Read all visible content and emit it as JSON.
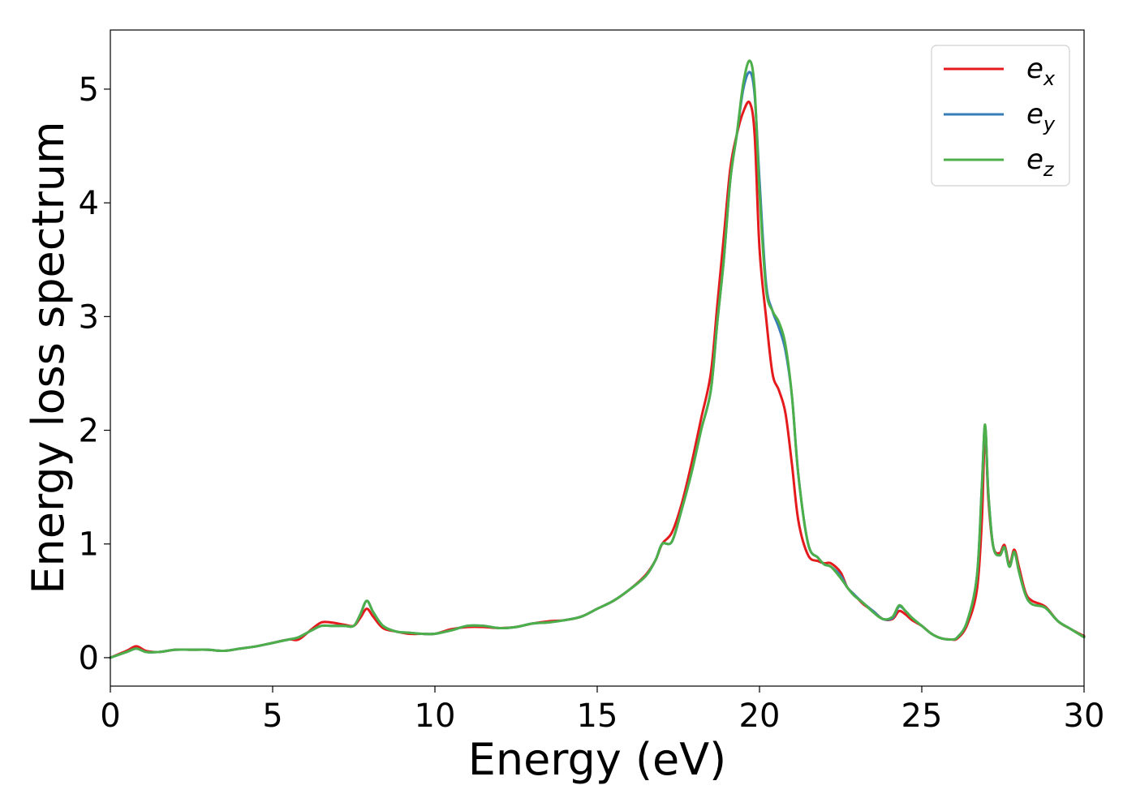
{
  "chart_data": {
    "type": "line",
    "xlabel": "Energy (eV)",
    "ylabel": "Energy loss spectrum",
    "xlim": [
      0,
      30
    ],
    "ylim": [
      -0.25,
      5.52
    ],
    "xticks": [
      0,
      5,
      10,
      15,
      20,
      25,
      30
    ],
    "xtick_labels": [
      "0",
      "5",
      "10",
      "15",
      "20",
      "25",
      "30"
    ],
    "yticks": [
      0,
      1,
      2,
      3,
      4,
      5
    ],
    "ytick_labels": [
      "0",
      "1",
      "2",
      "3",
      "4",
      "5"
    ],
    "grid": false,
    "legend_position": "top-right",
    "series": [
      {
        "name": "e_x",
        "label_main": "e",
        "label_sub": "x",
        "color": "#e41a1c",
        "x": [
          0,
          0.5,
          0.8,
          1.1,
          1.5,
          2,
          2.5,
          3,
          3.5,
          4,
          4.5,
          5,
          5.5,
          5.8,
          6.2,
          6.5,
          6.8,
          7.2,
          7.5,
          7.7,
          7.9,
          8.1,
          8.4,
          8.8,
          9.2,
          9.6,
          10,
          10.5,
          11,
          11.5,
          12,
          12.5,
          13,
          13.5,
          14,
          14.5,
          15,
          15.5,
          16,
          16.5,
          16.8,
          17,
          17.3,
          17.6,
          17.9,
          18.2,
          18.5,
          18.7,
          18.9,
          19.1,
          19.3,
          19.5,
          19.7,
          19.85,
          20,
          20.2,
          20.4,
          20.6,
          20.8,
          21,
          21.2,
          21.5,
          21.8,
          22,
          22.2,
          22.5,
          22.7,
          22.9,
          23.2,
          23.5,
          23.8,
          24.1,
          24.3,
          24.5,
          24.7,
          25,
          25.3,
          25.6,
          25.9,
          26.1,
          26.4,
          26.7,
          26.85,
          26.95,
          27.05,
          27.2,
          27.4,
          27.55,
          27.7,
          27.85,
          28,
          28.2,
          28.4,
          28.8,
          29.2,
          29.6,
          30
        ],
        "y": [
          0,
          0.06,
          0.1,
          0.06,
          0.05,
          0.07,
          0.07,
          0.07,
          0.06,
          0.08,
          0.1,
          0.13,
          0.16,
          0.16,
          0.25,
          0.31,
          0.31,
          0.29,
          0.28,
          0.35,
          0.43,
          0.36,
          0.26,
          0.23,
          0.21,
          0.21,
          0.21,
          0.25,
          0.27,
          0.27,
          0.26,
          0.27,
          0.3,
          0.32,
          0.33,
          0.36,
          0.43,
          0.5,
          0.6,
          0.73,
          0.86,
          1.0,
          1.1,
          1.35,
          1.7,
          2.1,
          2.5,
          3.1,
          3.7,
          4.3,
          4.6,
          4.8,
          4.88,
          4.6,
          3.6,
          3.0,
          2.5,
          2.35,
          2.15,
          1.7,
          1.2,
          0.9,
          0.85,
          0.83,
          0.83,
          0.75,
          0.62,
          0.56,
          0.47,
          0.41,
          0.34,
          0.34,
          0.41,
          0.38,
          0.33,
          0.28,
          0.21,
          0.17,
          0.16,
          0.17,
          0.29,
          0.6,
          1.2,
          2.0,
          1.4,
          0.98,
          0.92,
          0.99,
          0.82,
          0.95,
          0.79,
          0.57,
          0.5,
          0.45,
          0.32,
          0.25,
          0.19
        ]
      },
      {
        "name": "e_y",
        "label_main": "e",
        "label_sub": "y",
        "color": "#377eb8",
        "x": [
          0,
          0.5,
          0.8,
          1.1,
          1.5,
          2,
          2.5,
          3,
          3.5,
          4,
          4.5,
          5,
          5.5,
          5.8,
          6.2,
          6.5,
          6.8,
          7.2,
          7.5,
          7.7,
          7.9,
          8.1,
          8.4,
          8.8,
          9.2,
          9.6,
          10,
          10.5,
          11,
          11.5,
          12,
          12.5,
          13,
          13.5,
          14,
          14.5,
          15,
          15.5,
          16,
          16.5,
          16.8,
          17,
          17.3,
          17.6,
          17.9,
          18.2,
          18.5,
          18.7,
          18.9,
          19.1,
          19.3,
          19.5,
          19.7,
          19.85,
          20,
          20.2,
          20.4,
          20.6,
          20.8,
          21,
          21.2,
          21.5,
          21.8,
          22,
          22.2,
          22.5,
          22.7,
          22.9,
          23.2,
          23.5,
          23.8,
          24.1,
          24.3,
          24.5,
          24.7,
          25,
          25.3,
          25.6,
          25.9,
          26.1,
          26.4,
          26.7,
          26.85,
          26.95,
          27.05,
          27.2,
          27.4,
          27.55,
          27.7,
          27.85,
          28,
          28.2,
          28.4,
          28.8,
          29.2,
          29.6,
          30
        ],
        "y": [
          0,
          0.05,
          0.08,
          0.05,
          0.05,
          0.07,
          0.07,
          0.07,
          0.06,
          0.08,
          0.1,
          0.13,
          0.16,
          0.18,
          0.24,
          0.28,
          0.28,
          0.28,
          0.28,
          0.38,
          0.5,
          0.4,
          0.28,
          0.23,
          0.22,
          0.21,
          0.21,
          0.24,
          0.28,
          0.28,
          0.26,
          0.27,
          0.3,
          0.31,
          0.33,
          0.36,
          0.43,
          0.5,
          0.6,
          0.72,
          0.86,
          1.0,
          1.02,
          1.3,
          1.62,
          2.0,
          2.35,
          2.95,
          3.5,
          4.2,
          4.6,
          5.0,
          5.15,
          4.95,
          4.2,
          3.3,
          3.05,
          2.9,
          2.7,
          2.3,
          1.6,
          1.0,
          0.88,
          0.82,
          0.8,
          0.72,
          0.62,
          0.56,
          0.48,
          0.41,
          0.34,
          0.35,
          0.45,
          0.41,
          0.35,
          0.28,
          0.21,
          0.17,
          0.16,
          0.18,
          0.32,
          0.72,
          1.5,
          2.04,
          1.45,
          0.98,
          0.9,
          0.97,
          0.8,
          0.93,
          0.75,
          0.55,
          0.47,
          0.44,
          0.32,
          0.25,
          0.18
        ]
      },
      {
        "name": "e_z",
        "label_main": "e",
        "label_sub": "z",
        "color": "#4daf4a",
        "x": [
          0,
          0.5,
          0.8,
          1.1,
          1.5,
          2,
          2.5,
          3,
          3.5,
          4,
          4.5,
          5,
          5.5,
          5.8,
          6.2,
          6.5,
          6.8,
          7.2,
          7.5,
          7.7,
          7.9,
          8.1,
          8.4,
          8.8,
          9.2,
          9.6,
          10,
          10.5,
          11,
          11.5,
          12,
          12.5,
          13,
          13.5,
          14,
          14.5,
          15,
          15.5,
          16,
          16.5,
          16.8,
          17,
          17.3,
          17.6,
          17.9,
          18.2,
          18.5,
          18.7,
          18.9,
          19.1,
          19.3,
          19.5,
          19.7,
          19.85,
          20,
          20.2,
          20.4,
          20.6,
          20.8,
          21,
          21.2,
          21.5,
          21.8,
          22,
          22.2,
          22.5,
          22.7,
          22.9,
          23.2,
          23.5,
          23.8,
          24.1,
          24.3,
          24.5,
          24.7,
          25,
          25.3,
          25.6,
          25.9,
          26.1,
          26.4,
          26.7,
          26.85,
          26.95,
          27.05,
          27.2,
          27.4,
          27.55,
          27.7,
          27.85,
          28,
          28.2,
          28.4,
          28.8,
          29.2,
          29.6,
          30
        ],
        "y": [
          0,
          0.05,
          0.08,
          0.05,
          0.05,
          0.07,
          0.07,
          0.07,
          0.06,
          0.08,
          0.1,
          0.13,
          0.16,
          0.18,
          0.24,
          0.28,
          0.28,
          0.28,
          0.28,
          0.38,
          0.5,
          0.4,
          0.28,
          0.23,
          0.22,
          0.21,
          0.21,
          0.24,
          0.28,
          0.28,
          0.26,
          0.27,
          0.3,
          0.31,
          0.33,
          0.36,
          0.43,
          0.5,
          0.6,
          0.72,
          0.86,
          1.0,
          1.02,
          1.3,
          1.62,
          2.0,
          2.35,
          2.95,
          3.5,
          4.2,
          4.6,
          5.05,
          5.25,
          5.0,
          4.1,
          3.25,
          3.05,
          2.95,
          2.75,
          2.3,
          1.6,
          1.0,
          0.88,
          0.82,
          0.8,
          0.7,
          0.62,
          0.55,
          0.48,
          0.4,
          0.34,
          0.36,
          0.46,
          0.41,
          0.35,
          0.28,
          0.21,
          0.17,
          0.16,
          0.18,
          0.32,
          0.72,
          1.5,
          2.05,
          1.45,
          0.98,
          0.9,
          0.97,
          0.8,
          0.93,
          0.75,
          0.55,
          0.47,
          0.44,
          0.32,
          0.25,
          0.18
        ]
      }
    ]
  }
}
